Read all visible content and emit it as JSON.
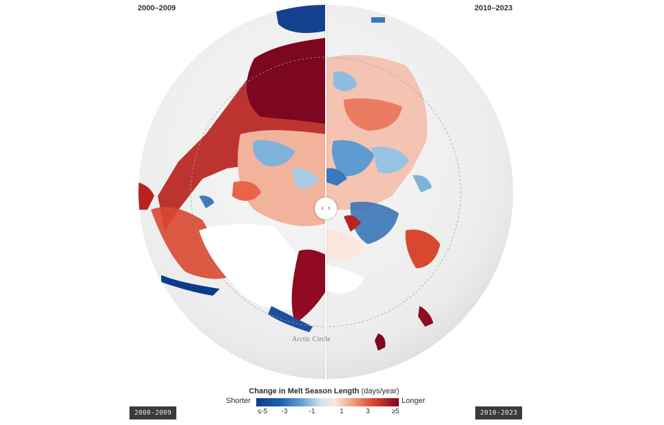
{
  "header": {
    "left_period": "2000–2009",
    "right_period": "2010–2023"
  },
  "map": {
    "place_label": "Arctic Circle",
    "slider_left_glyph": "‹",
    "slider_right_glyph": "›"
  },
  "legend": {
    "title_bold": "Change in Melt Season Length",
    "title_unit": "(days/year)",
    "left_word": "Shorter",
    "right_word": "Longer",
    "ticks": [
      "≤-5",
      "-3",
      "-1",
      "1",
      "3",
      "≥5"
    ],
    "colors": {
      "strong_negative": "#0b3b8c",
      "mid_negative": "#6aa4d4",
      "light_negative": "#cfe1f0",
      "light_positive": "#fbe7de",
      "mid_positive": "#f3a184",
      "strong_positive": "#7d0620"
    }
  },
  "buttons": {
    "left_label": "2000-2009",
    "right_label": "2010-2023"
  }
}
